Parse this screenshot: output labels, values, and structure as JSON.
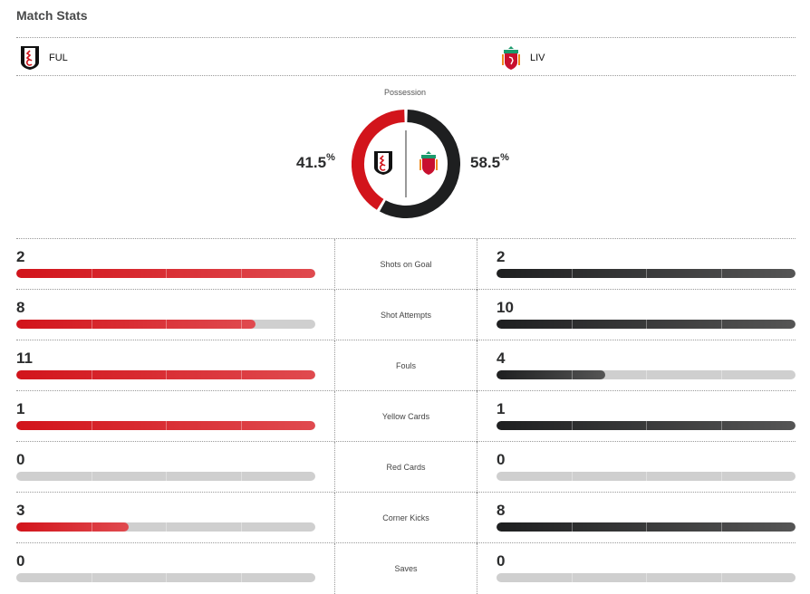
{
  "title": "Match Stats",
  "home": {
    "abbr": "FUL",
    "possession": "41.5",
    "color": "#d2141b"
  },
  "away": {
    "abbr": "LIV",
    "possession": "58.5",
    "color": "#1e1f20"
  },
  "possession_label": "Possession",
  "percent_sign": "%",
  "stats": [
    {
      "label": "Shots on Goal",
      "home": "2",
      "away": "2"
    },
    {
      "label": "Shot Attempts",
      "home": "8",
      "away": "10"
    },
    {
      "label": "Fouls",
      "home": "11",
      "away": "4"
    },
    {
      "label": "Yellow Cards",
      "home": "1",
      "away": "1"
    },
    {
      "label": "Red Cards",
      "home": "0",
      "away": "0"
    },
    {
      "label": "Corner Kicks",
      "home": "3",
      "away": "8"
    },
    {
      "label": "Saves",
      "home": "0",
      "away": "0"
    }
  ]
}
